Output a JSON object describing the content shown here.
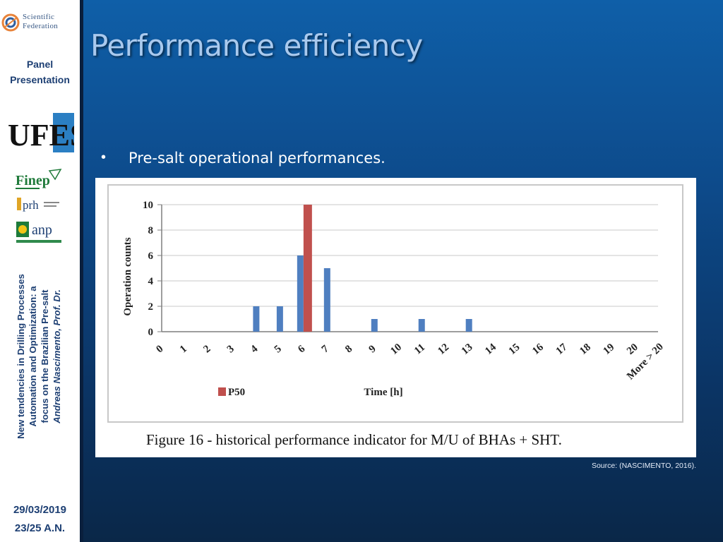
{
  "sidebar": {
    "logo_line1": "Scientific",
    "logo_line2": "Federation",
    "panel_line1": "Panel",
    "panel_line2": "Presentation",
    "ufes_label": "UFES",
    "finep_label": "Finep",
    "prh_label": "prh",
    "anp_label": "anp",
    "vertical_line1": "New tendencies in Drilling Processes",
    "vertical_line2": "Automation and Optimization: a",
    "vertical_line3": "focus on the Brazilian Pre-salt",
    "vertical_line4": "Andreas Nascimento, Prof. Dr.",
    "date": "29/03/2019",
    "page": "23/25  A.N."
  },
  "slide": {
    "title": "Performance efficiency",
    "bullet_symbol": "•",
    "bullet_text": "Pre-salt operational performances.",
    "source": "Source: (NASCIMENTO, 2016)."
  },
  "colors": {
    "bar_blue": "#4f7fc0",
    "bar_red": "#c0504d",
    "title": "#a9c9ee"
  },
  "chart_data": {
    "type": "bar",
    "caption": "Figure 16 - historical performance indicator for M/U of BHAs + SHT.",
    "xlabel": "Time [h]",
    "ylabel": "Operation counts",
    "ylim": [
      0,
      10
    ],
    "yticks": [
      0,
      2,
      4,
      6,
      8,
      10
    ],
    "grid": true,
    "legend_position": "bottom-left",
    "categories": [
      "0",
      "1",
      "2",
      "3",
      "4",
      "5",
      "6",
      "7",
      "8",
      "9",
      "10",
      "11",
      "12",
      "13",
      "14",
      "15",
      "16",
      "17",
      "18",
      "19",
      "20",
      "More > 20"
    ],
    "series": [
      {
        "values": [
          0,
          0,
          0,
          0,
          2,
          2,
          6,
          5,
          0,
          1,
          0,
          1,
          0,
          1,
          0,
          0,
          0,
          0,
          0,
          0,
          0,
          0
        ]
      },
      {
        "name": "P50",
        "values": [
          0,
          0,
          0,
          0,
          0,
          0,
          10,
          0,
          0,
          0,
          0,
          0,
          0,
          0,
          0,
          0,
          0,
          0,
          0,
          0,
          0,
          0
        ]
      }
    ]
  }
}
